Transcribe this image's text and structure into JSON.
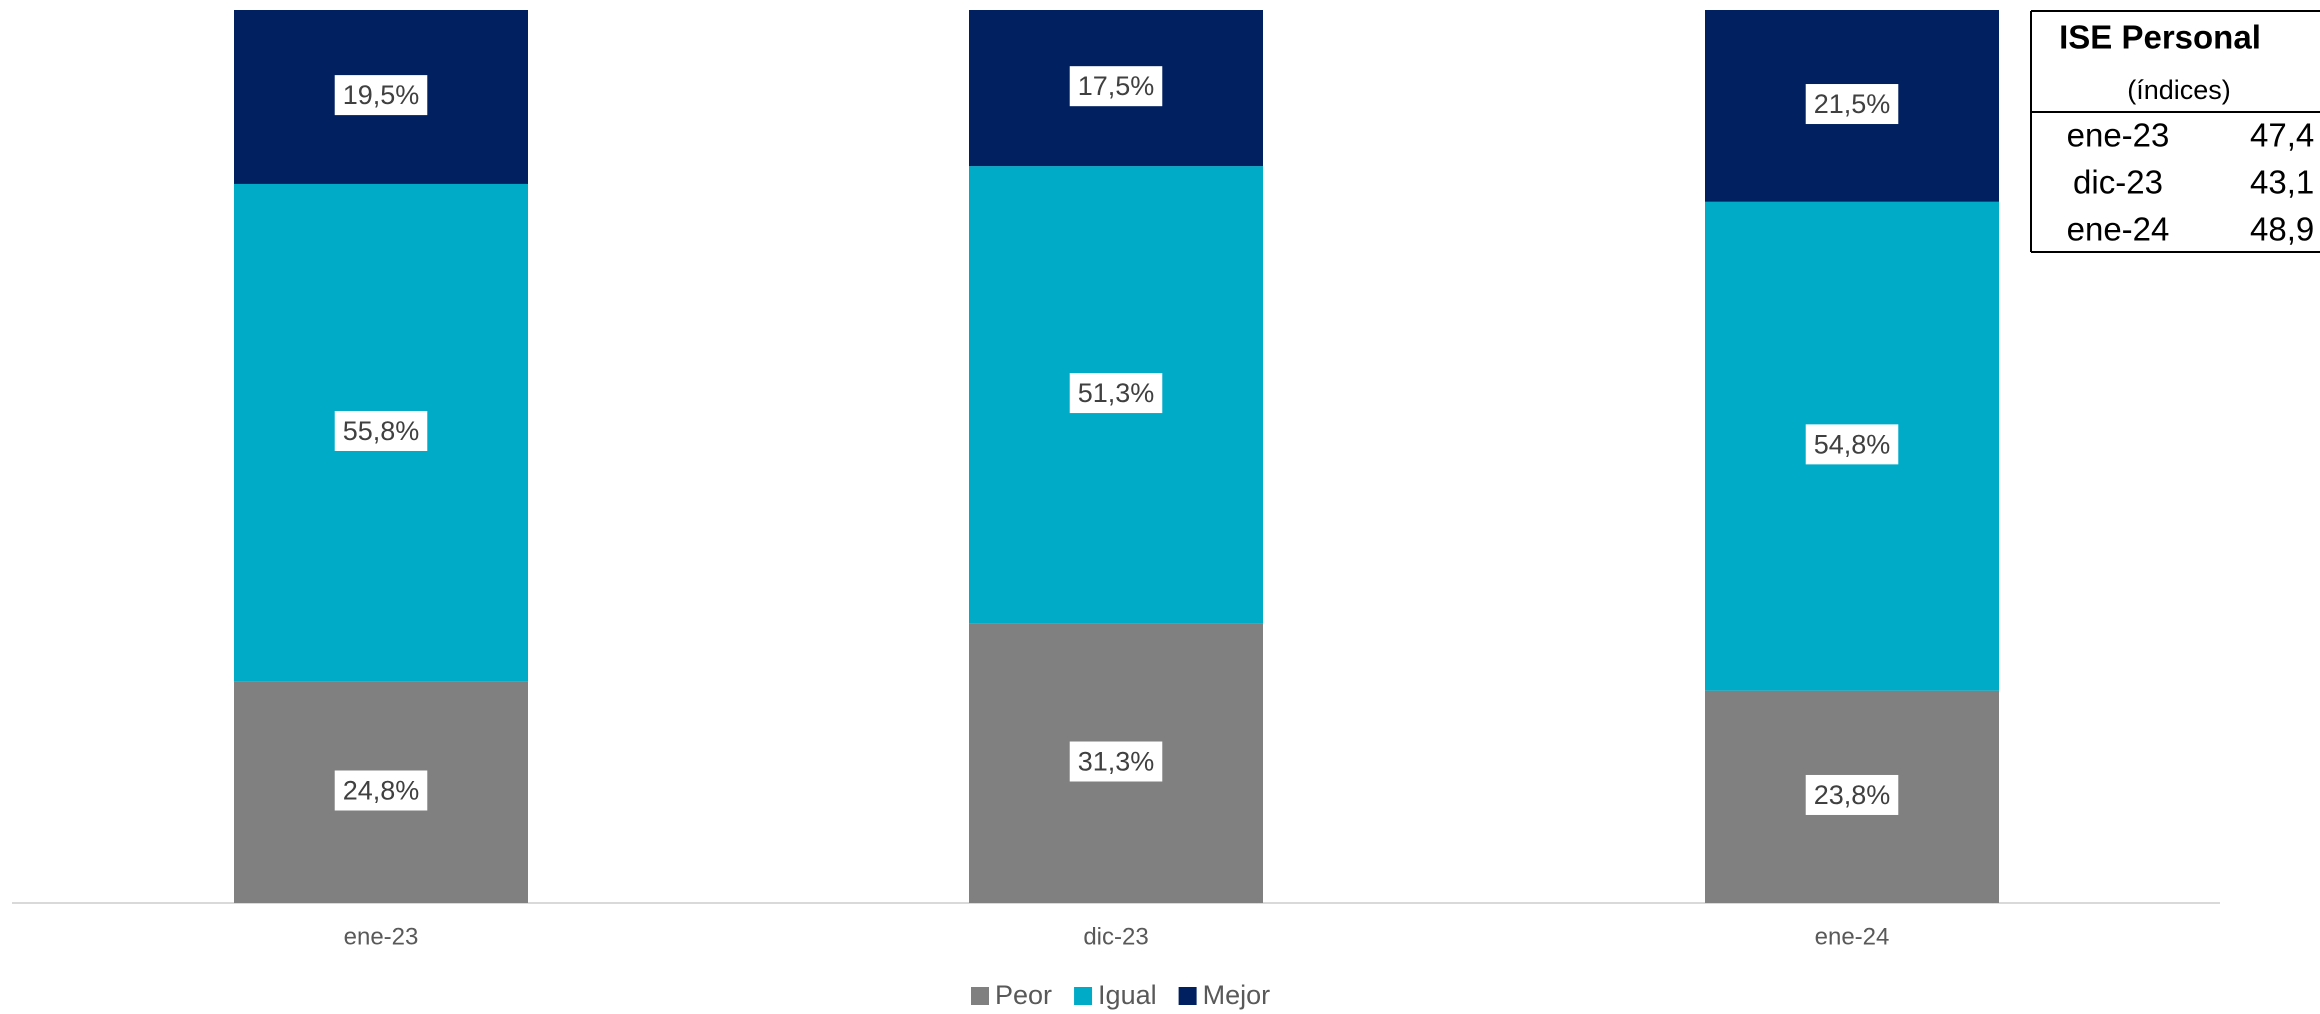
{
  "chart_data": {
    "type": "stacked_bar",
    "categories": [
      "ene-23",
      "dic-23",
      "ene-24"
    ],
    "series": [
      {
        "name": "Peor",
        "color": "#808080",
        "values": [
          24.8,
          31.3,
          23.8
        ],
        "value_labels": [
          "24,8%",
          "31,3%",
          "23,8%"
        ]
      },
      {
        "name": "Igual",
        "color": "#00abc8",
        "values": [
          55.8,
          51.3,
          54.8
        ],
        "value_labels": [
          "55,8%",
          "51,3%",
          "54,8%"
        ]
      },
      {
        "name": "Mejor",
        "color": "#002060",
        "values": [
          19.5,
          17.5,
          21.5
        ],
        "value_labels": [
          "19,5%",
          "17,5%",
          "21,5%"
        ]
      }
    ],
    "legend": "bottom"
  },
  "table": {
    "title": "ISE Personal",
    "subtitle": "(índices)",
    "rows": [
      [
        "ene-23",
        "47,4"
      ],
      [
        "dic-23",
        "43,1"
      ],
      [
        "ene-24",
        "48,9"
      ]
    ]
  }
}
